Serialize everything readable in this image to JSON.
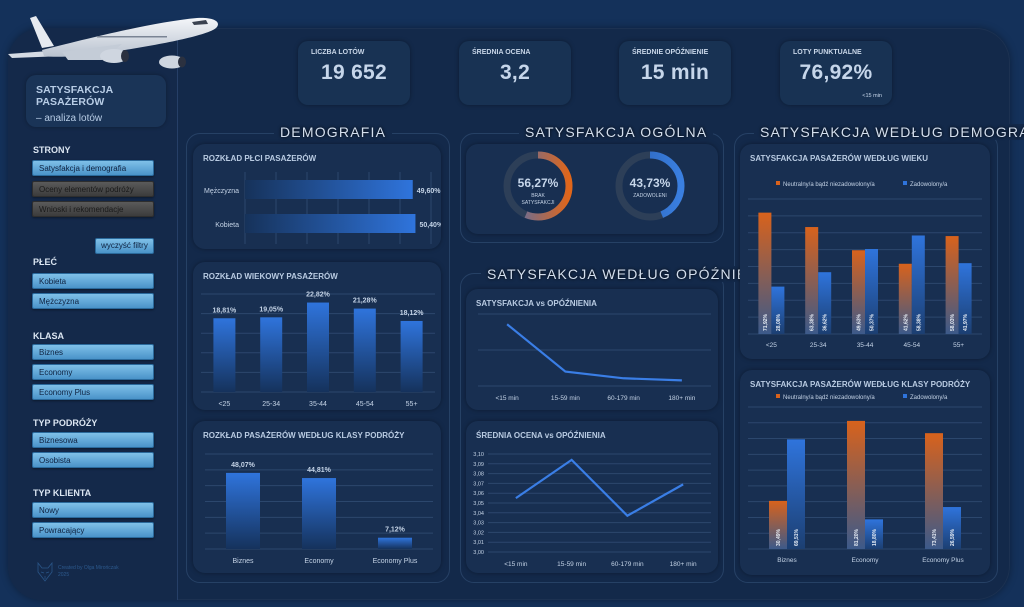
{
  "sidebar": {
    "title_line1": "SATYSFAKCJA PASAŻERÓW",
    "title_line2": "– analiza lotów",
    "pages_label": "STRONY",
    "pages": [
      {
        "label": "Satysfakcja i demografia",
        "active": true
      },
      {
        "label": "Oceny elementów podróży",
        "active": false
      },
      {
        "label": "Wnioski i rekomendacje",
        "active": false
      }
    ],
    "clear_filters": "wyczyść filtry",
    "filters": [
      {
        "label": "PŁEĆ",
        "options": [
          "Kobieta",
          "Mężczyzna"
        ]
      },
      {
        "label": "KLASA",
        "options": [
          "Biznes",
          "Economy",
          "Economy Plus"
        ]
      },
      {
        "label": "TYP PODRÓŻY",
        "options": [
          "Biznesowa",
          "Osobista"
        ]
      },
      {
        "label": "TYP KLIENTA",
        "options": [
          "Nowy",
          "Powracający"
        ]
      }
    ],
    "credit_line1": "Created by Olga Mirończak",
    "credit_line2": "2025"
  },
  "kpis": [
    {
      "label": "LICZBA LOTÓW",
      "value": "19 652",
      "sub": ""
    },
    {
      "label": "ŚREDNIA OCENA",
      "value": "3,2",
      "sub": ""
    },
    {
      "label": "ŚREDNIE OPÓŹNIENIE",
      "value": "15 min",
      "sub": ""
    },
    {
      "label": "LOTY PUNKTUALNE",
      "value": "76,92%",
      "sub": "<15 min"
    }
  ],
  "sections": {
    "demografia": "DEMOGRAFIA",
    "ogolna": "SATYSFAKCJA OGÓLNA",
    "opoznienie": "SATYSFAKCJA WEDŁUG OPÓŹNIENIA",
    "wg_demografii": "SATYSFAKCJA WEDŁUG DEMOGRAFII"
  },
  "donuts": [
    {
      "value": 56.27,
      "label": "56,27%",
      "caption1": "BRAK",
      "caption2": "SATYSFAKCJI",
      "color_start": "#e0661a",
      "color_end": "#4e6fb4"
    },
    {
      "value": 43.73,
      "label": "43,73%",
      "caption1": "ZADOWOLENI",
      "caption2": "",
      "color_start": "#3a7fe0",
      "color_end": "#2a5fb0"
    }
  ],
  "colors": {
    "bar_blue": "#2f74dc",
    "bar_orange": "#d8621c",
    "line": "#3a7ee6"
  },
  "chart_data": [
    {
      "id": "gender",
      "type": "bar",
      "orientation": "horizontal",
      "title": "ROZKŁAD PŁCI PASAŻERÓW",
      "categories": [
        "Mężczyzna",
        "Kobieta"
      ],
      "values": [
        49.6,
        50.4
      ],
      "labels": [
        "49,60%",
        "50,40%"
      ],
      "xlim": [
        0,
        55
      ]
    },
    {
      "id": "age",
      "type": "bar",
      "title": "ROZKŁAD WIEKOWY PASAŻERÓW",
      "categories": [
        "<25",
        "25-34",
        "35-44",
        "45-54",
        "55+"
      ],
      "values": [
        18.81,
        19.05,
        22.82,
        21.28,
        18.12
      ],
      "labels": [
        "18,81%",
        "19,05%",
        "22,82%",
        "21,28%",
        "18,12%"
      ],
      "ylim": [
        0,
        25
      ]
    },
    {
      "id": "class",
      "type": "bar",
      "title": "ROZKŁAD PASAŻERÓW WEDŁUG KLASY PODRÓŻY",
      "categories": [
        "Biznes",
        "Economy",
        "Economy Plus"
      ],
      "values": [
        48.07,
        44.81,
        7.12
      ],
      "labels": [
        "48,07%",
        "44,81%",
        "7,12%"
      ],
      "ylim": [
        0,
        60
      ]
    },
    {
      "id": "sat_delay",
      "type": "line",
      "title": "SATYSFAKCJA vs OPÓŹNIENIA",
      "categories": [
        "<15 min",
        "15-59 min",
        "60-179 min",
        "180+ min"
      ],
      "values": [
        12000,
        2800,
        1500,
        1100
      ],
      "ylim": [
        0,
        14000
      ]
    },
    {
      "id": "rating_delay",
      "type": "line",
      "title": "ŚREDNIA OCENA vs OPÓŹNIENIA",
      "categories": [
        "<15 min",
        "15-59 min",
        "60-179 min",
        "180+ min"
      ],
      "values": [
        3.055,
        3.094,
        3.037,
        3.069
      ],
      "yticks": [
        "3,00",
        "3,01",
        "3,02",
        "3,03",
        "3,04",
        "3,05",
        "3,06",
        "3,07",
        "3,08",
        "3,09",
        "3,10"
      ],
      "ylim": [
        3.0,
        3.1
      ]
    },
    {
      "id": "sat_age",
      "type": "bar",
      "title": "SATYSFAKCJA PASAŻERÓW WEDŁUG WIEKU",
      "categories": [
        "<25",
        "25-34",
        "35-44",
        "45-54",
        "55+"
      ],
      "series": [
        {
          "name": "Neutralny/a bądź niezadowolony/a",
          "values": [
            71.92,
            63.38,
            49.63,
            41.62,
            58.03
          ],
          "labels": [
            "71,92%",
            "63,38%",
            "49,63%",
            "41,62%",
            "58,03%"
          ]
        },
        {
          "name": "Zadowolony/a",
          "values": [
            28.08,
            36.62,
            50.37,
            58.38,
            41.97
          ],
          "labels": [
            "28,08%",
            "36,62%",
            "50,37%",
            "58,38%",
            "41,97%"
          ]
        }
      ],
      "ylim": [
        0,
        80
      ],
      "legend": "top"
    },
    {
      "id": "sat_class",
      "type": "bar",
      "title": "SATYSFAKCJA PASAŻERÓW WEDŁUG KLASY PODRÓŻY",
      "categories": [
        "Biznes",
        "Economy",
        "Economy Plus"
      ],
      "series": [
        {
          "name": "Neutralny/a bądź niezadowolony/a",
          "values": [
            30.49,
            81.2,
            73.41
          ],
          "labels": [
            "30,49%",
            "81,20%",
            "73,41%"
          ]
        },
        {
          "name": "Zadowolony/a",
          "values": [
            69.51,
            18.8,
            26.59
          ],
          "labels": [
            "69,51%",
            "18,80%",
            "26,59%"
          ]
        }
      ],
      "ylim": [
        0,
        90
      ],
      "legend": "top"
    }
  ]
}
